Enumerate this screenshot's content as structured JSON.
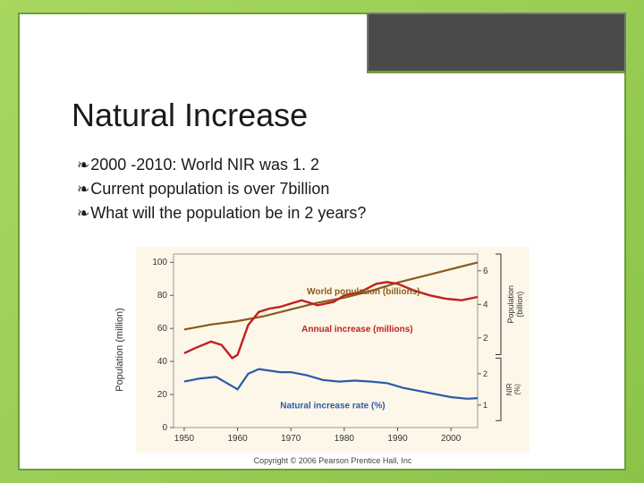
{
  "title": "Natural Increase",
  "bullets": [
    "2000 -2010: World NIR was 1. 2",
    "Current population is over 7billion",
    "What will the population be in 2 years?"
  ],
  "chart": {
    "type": "multi-line",
    "background_color": "#fcf7e8",
    "x": {
      "ticks": [
        1950,
        1960,
        1970,
        1980,
        1990,
        2000
      ],
      "lim": [
        1948,
        2005
      ],
      "fontsize": 10
    },
    "y_left": {
      "label": "Population (million)",
      "ticks": [
        0,
        20,
        40,
        60,
        80,
        100
      ],
      "lim": [
        0,
        105
      ],
      "fontsize": 10
    },
    "y_right_top": {
      "label": "Population (billion)",
      "ticks": [
        2,
        4,
        6
      ],
      "lim": [
        1,
        7
      ],
      "fontsize": 10
    },
    "y_right_bottom": {
      "label": "NIR (%)",
      "ticks": [
        1,
        2
      ],
      "lim": [
        0.5,
        2.5
      ],
      "fontsize": 9
    },
    "series": {
      "world_population": {
        "label": "World population (billions)",
        "label_color": "#8a5a1f",
        "color": "#8a5a1f",
        "line_width": 2.2,
        "axis": "right_top",
        "points": [
          [
            1950,
            2.5
          ],
          [
            1955,
            2.8
          ],
          [
            1960,
            3.0
          ],
          [
            1965,
            3.3
          ],
          [
            1970,
            3.7
          ],
          [
            1975,
            4.1
          ],
          [
            1980,
            4.4
          ],
          [
            1985,
            4.8
          ],
          [
            1990,
            5.3
          ],
          [
            1995,
            5.7
          ],
          [
            2000,
            6.1
          ],
          [
            2005,
            6.5
          ]
        ]
      },
      "annual_increase": {
        "label": "Annual increase (millions)",
        "label_color": "#c02020",
        "color": "#c02020",
        "line_width": 2.4,
        "axis": "left",
        "points": [
          [
            1950,
            45
          ],
          [
            1952,
            48
          ],
          [
            1955,
            52
          ],
          [
            1957,
            50
          ],
          [
            1959,
            42
          ],
          [
            1960,
            44
          ],
          [
            1962,
            62
          ],
          [
            1964,
            70
          ],
          [
            1966,
            72
          ],
          [
            1968,
            73
          ],
          [
            1970,
            75
          ],
          [
            1972,
            77
          ],
          [
            1975,
            74
          ],
          [
            1978,
            76
          ],
          [
            1980,
            80
          ],
          [
            1983,
            82
          ],
          [
            1986,
            87
          ],
          [
            1988,
            88
          ],
          [
            1990,
            87
          ],
          [
            1993,
            83
          ],
          [
            1996,
            80
          ],
          [
            1999,
            78
          ],
          [
            2002,
            77
          ],
          [
            2005,
            79
          ]
        ]
      },
      "nir": {
        "label": "Natural increase rate (%)",
        "label_color": "#2a5aa8",
        "color": "#2a5aa8",
        "line_width": 2.2,
        "axis": "right_bottom",
        "points": [
          [
            1950,
            1.75
          ],
          [
            1953,
            1.85
          ],
          [
            1956,
            1.9
          ],
          [
            1958,
            1.7
          ],
          [
            1960,
            1.5
          ],
          [
            1962,
            2.0
          ],
          [
            1964,
            2.15
          ],
          [
            1966,
            2.1
          ],
          [
            1968,
            2.05
          ],
          [
            1970,
            2.05
          ],
          [
            1973,
            1.95
          ],
          [
            1976,
            1.8
          ],
          [
            1979,
            1.75
          ],
          [
            1982,
            1.78
          ],
          [
            1985,
            1.75
          ],
          [
            1988,
            1.7
          ],
          [
            1991,
            1.55
          ],
          [
            1994,
            1.45
          ],
          [
            1997,
            1.35
          ],
          [
            2000,
            1.25
          ],
          [
            2003,
            1.2
          ],
          [
            2005,
            1.22
          ]
        ]
      }
    },
    "copyright": "Copyright © 2006 Pearson Prentice Hall, Inc"
  }
}
